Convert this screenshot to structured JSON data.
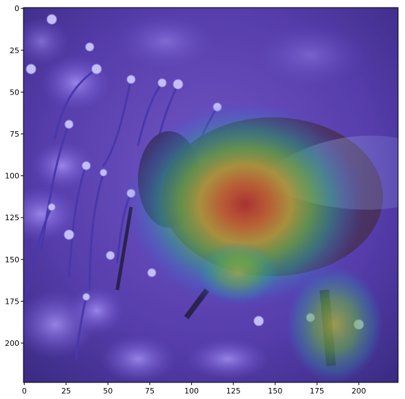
{
  "image": {
    "subject": "bumblebee on purple flowers with attention heatmap overlay",
    "overlay_colormap": "jet",
    "base_tint": "#6a52c8"
  },
  "chart_data": {
    "type": "heatmap",
    "title": "",
    "xlabel": "",
    "ylabel": "",
    "xlim": [
      0,
      224
    ],
    "ylim": [
      224,
      0
    ],
    "x_ticks": [
      0,
      25,
      50,
      75,
      100,
      125,
      150,
      175,
      200
    ],
    "y_ticks": [
      0,
      25,
      50,
      75,
      100,
      125,
      150,
      175,
      200
    ],
    "x_tick_labels": [
      "0",
      "25",
      "50",
      "75",
      "100",
      "125",
      "150",
      "175",
      "200"
    ],
    "y_tick_labels": [
      "0",
      "25",
      "50",
      "75",
      "100",
      "125",
      "150",
      "175",
      "200"
    ],
    "grid": false,
    "hotspot": {
      "x": 132,
      "y": 117
    }
  }
}
